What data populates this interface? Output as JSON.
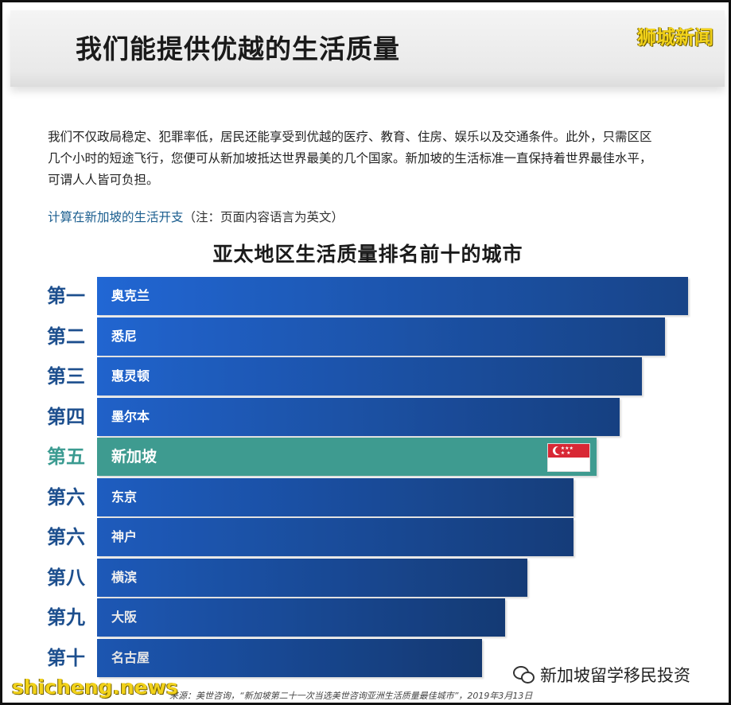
{
  "header": {
    "title": "我们能提供优越的生活质量",
    "watermark": "狮城新闻"
  },
  "intro": {
    "lines": [
      "我们不仅政局稳定、犯罪率低，居民还能享受到优越的医疗、教育、住房、娱乐以及交通条件。此外，只需区区",
      "几个小时的短途飞行，您便可从新加坡抵达世界最美的几个国家。新加坡的生活标准一直保持着世界最佳水平，",
      "可谓人人皆可负担。"
    ],
    "link_text": "计算在新加坡的生活开支",
    "link_note": "（注：页面内容语言为英文）"
  },
  "chart_data": {
    "type": "bar",
    "orientation": "horizontal",
    "title": "亚太地区生活质量排名前十的城市",
    "categories": [
      "奥克兰",
      "悉尼",
      "惠灵顿",
      "墨尔本",
      "新加坡",
      "东京",
      "神户",
      "横滨",
      "大阪",
      "名古屋"
    ],
    "rank_labels": [
      "第一",
      "第二",
      "第三",
      "第四",
      "第五",
      "第六",
      "第六",
      "第八",
      "第九",
      "第十"
    ],
    "values": [
      1,
      2,
      3,
      4,
      5,
      6,
      6,
      8,
      9,
      10
    ],
    "highlight_index": 4,
    "colors": {
      "bar_top": "#1f5fc4",
      "bar_bottom": "#163f7e",
      "highlight": "#3e9b90",
      "rank_text": "#1d4f8e",
      "rank_text_highlight": "#3b9b91"
    },
    "axis_visible": false,
    "grid": false
  },
  "flag_icon": "singapore-flag-icon",
  "source": "来源：美世咨询，“新加坡第二十一次当选美世咨询亚洲生活质量最佳城市”，2019年3月13日",
  "watermark_bottom": "shicheng.news",
  "wechat": {
    "icon": "wechat-icon",
    "label": "新加坡留学移民投资"
  }
}
